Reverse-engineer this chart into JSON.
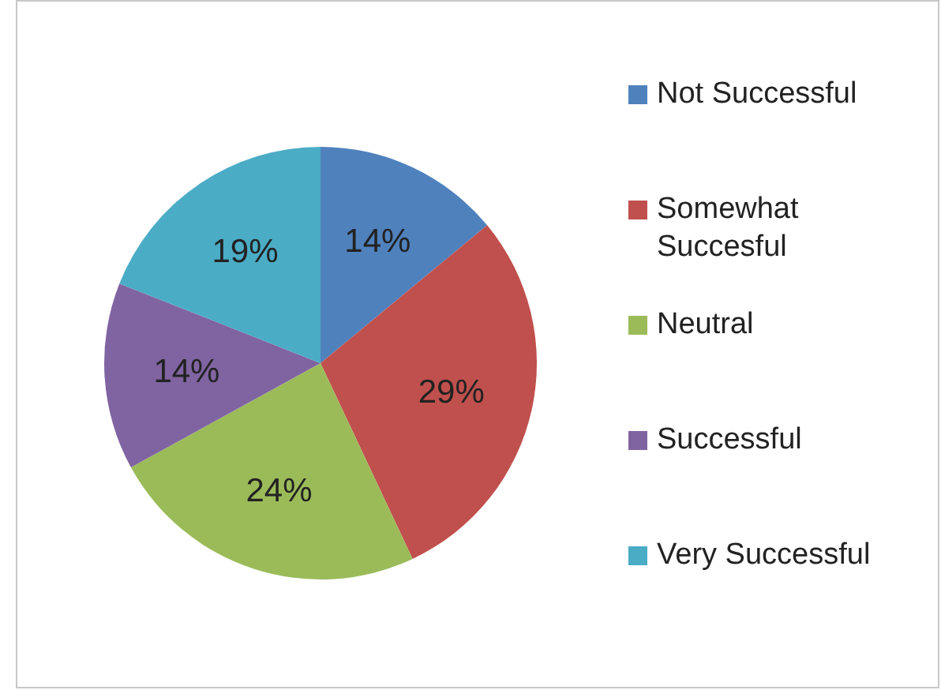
{
  "chart_data": {
    "type": "pie",
    "categories": [
      "Not Successful",
      "Somewhat Succesful",
      "Neutral",
      "Successful",
      "Very Successful"
    ],
    "values": [
      14,
      29,
      24,
      14,
      19
    ],
    "value_labels": [
      "14%",
      "29%",
      "24%",
      "14%",
      "19%"
    ],
    "colors": [
      "#4f81bd",
      "#c0504d",
      "#9bbb59",
      "#8064a2",
      "#4bacc6"
    ],
    "legend": "right"
  }
}
